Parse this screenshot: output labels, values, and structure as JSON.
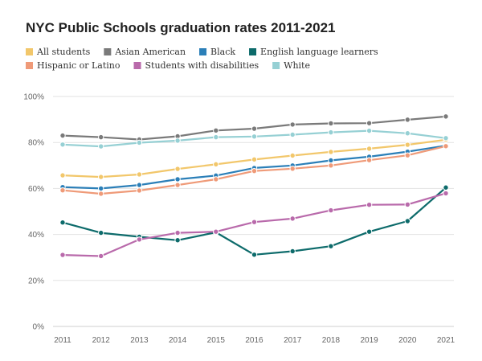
{
  "chart_data": {
    "type": "line",
    "title": "NYC Public Schools graduation rates 2011-2021",
    "xlabel": "",
    "ylabel": "",
    "x": [
      2011,
      2012,
      2013,
      2014,
      2015,
      2016,
      2017,
      2018,
      2019,
      2020,
      2021
    ],
    "ylim": [
      0,
      100
    ],
    "yticks": [
      0,
      20,
      40,
      60,
      80,
      100
    ],
    "ytick_labels": [
      "0%",
      "20%",
      "40%",
      "60%",
      "80%",
      "100%"
    ],
    "grid": true,
    "legend_position": "top",
    "series": [
      {
        "name": "All students",
        "color": "#f2c76b",
        "values": [
          65.7,
          65.0,
          66.1,
          68.5,
          70.5,
          72.6,
          74.3,
          75.9,
          77.3,
          79.0,
          81.2
        ]
      },
      {
        "name": "Asian American",
        "color": "#7a7a7a",
        "values": [
          83.0,
          82.3,
          81.3,
          82.7,
          85.2,
          86.0,
          87.8,
          88.3,
          88.4,
          89.9,
          91.3
        ]
      },
      {
        "name": "Black",
        "color": "#2b7fb8",
        "values": [
          60.6,
          60.0,
          61.5,
          64.0,
          65.6,
          68.9,
          70.0,
          72.2,
          73.8,
          76.0,
          78.6
        ]
      },
      {
        "name": "English language learners",
        "color": "#0d6b6b",
        "values": [
          45.2,
          40.7,
          39.0,
          37.5,
          40.9,
          31.2,
          32.7,
          34.9,
          41.2,
          45.8,
          60.4
        ]
      },
      {
        "name": "Hispanic or Latino",
        "color": "#ef9a78",
        "values": [
          59.2,
          57.7,
          59.1,
          61.5,
          64.0,
          67.6,
          68.6,
          70.0,
          72.3,
          74.4,
          78.4
        ]
      },
      {
        "name": "Students with disabilities",
        "color": "#b96aab",
        "values": [
          31.1,
          30.6,
          37.8,
          40.7,
          41.2,
          45.4,
          46.9,
          50.5,
          52.9,
          53.0,
          57.9
        ]
      },
      {
        "name": "White",
        "color": "#96d0d4",
        "values": [
          79.1,
          78.3,
          79.9,
          80.8,
          82.3,
          82.6,
          83.4,
          84.4,
          85.1,
          84.0,
          81.9
        ]
      }
    ]
  }
}
